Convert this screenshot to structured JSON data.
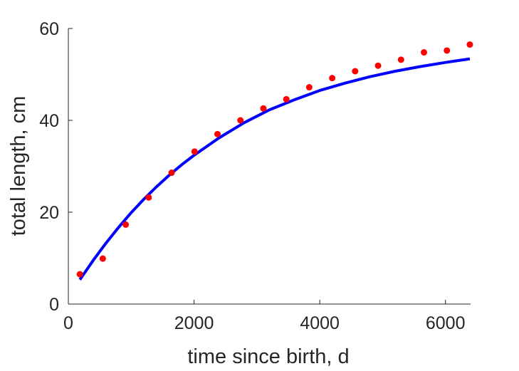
{
  "chart_data": {
    "type": "scatter",
    "title": "",
    "xlabel": "time since birth, d",
    "ylabel": "total length, cm",
    "xlim": [
      0,
      6400
    ],
    "ylim": [
      0,
      60
    ],
    "xticks": [
      0,
      2000,
      4000,
      6000
    ],
    "yticks": [
      0,
      20,
      40,
      60
    ],
    "grid": false,
    "series": [
      {
        "kind": "points",
        "color": "#ff0000",
        "x": [
          183,
          548,
          913,
          1278,
          1643,
          2008,
          2373,
          2738,
          3103,
          3468,
          3833,
          4198,
          4563,
          4928,
          5293,
          5658,
          6023,
          6388
        ],
        "y": [
          6.5,
          9.9,
          17.3,
          23.2,
          28.6,
          33.2,
          37.0,
          40.0,
          42.6,
          44.6,
          47.2,
          49.2,
          50.7,
          51.9,
          53.2,
          54.8,
          55.2,
          56.5
        ]
      },
      {
        "kind": "line",
        "color": "#0000ff",
        "x": [
          183,
          400,
          600,
          800,
          1000,
          1200,
          1400,
          1600,
          1800,
          2000,
          2400,
          2800,
          3200,
          3600,
          4000,
          4400,
          4800,
          5200,
          5600,
          6000,
          6388
        ],
        "y": [
          5.3,
          9.6,
          13.3,
          16.7,
          19.9,
          22.8,
          25.5,
          28.0,
          30.3,
          32.4,
          36.2,
          39.5,
          42.3,
          44.5,
          46.5,
          48.1,
          49.5,
          50.7,
          51.7,
          52.6,
          53.4
        ]
      }
    ]
  }
}
